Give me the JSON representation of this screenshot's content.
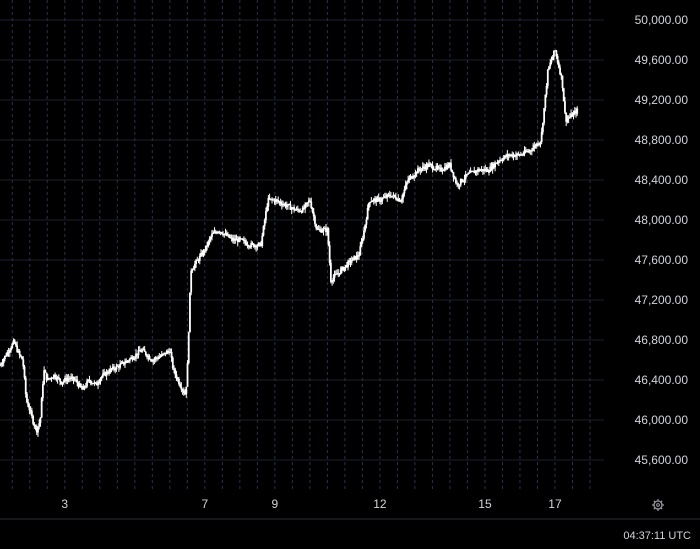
{
  "chart_data": {
    "type": "candlestick",
    "title": "",
    "xlabel": "",
    "ylabel": "",
    "x_ticks": [
      "3",
      "7",
      "9",
      "12",
      "15",
      "17"
    ],
    "x_range": [
      1.15,
      18.4
    ],
    "ylim": [
      45300,
      50200
    ],
    "y_ticks": [
      45600,
      46000,
      46400,
      46800,
      47200,
      47600,
      48000,
      48400,
      48800,
      49200,
      49600,
      50000
    ],
    "y_tick_labels": [
      "45,600.00",
      "46,000.00",
      "46,400.00",
      "46,800.00",
      "47,200.00",
      "47,600.00",
      "48,000.00",
      "48,400.00",
      "48,800.00",
      "49,200.00",
      "49,600.00",
      "50,000.00"
    ],
    "grid": true,
    "price_path": [
      [
        1.15,
        46550
      ],
      [
        1.4,
        46700
      ],
      [
        1.55,
        46780
      ],
      [
        1.7,
        46650
      ],
      [
        1.8,
        46600
      ],
      [
        1.9,
        46200
      ],
      [
        2.0,
        46100
      ],
      [
        2.1,
        45980
      ],
      [
        2.2,
        45900
      ],
      [
        2.3,
        46000
      ],
      [
        2.4,
        46500
      ],
      [
        2.5,
        46400
      ],
      [
        2.7,
        46450
      ],
      [
        2.9,
        46380
      ],
      [
        3.1,
        46420
      ],
      [
        3.3,
        46400
      ],
      [
        3.5,
        46300
      ],
      [
        3.7,
        46400
      ],
      [
        3.9,
        46350
      ],
      [
        4.0,
        46420
      ],
      [
        4.3,
        46500
      ],
      [
        4.6,
        46550
      ],
      [
        4.9,
        46620
      ],
      [
        5.2,
        46700
      ],
      [
        5.5,
        46600
      ],
      [
        5.8,
        46650
      ],
      [
        6.0,
        46700
      ],
      [
        6.1,
        46500
      ],
      [
        6.3,
        46350
      ],
      [
        6.45,
        46250
      ],
      [
        6.5,
        46500
      ],
      [
        6.6,
        47500
      ],
      [
        6.8,
        47600
      ],
      [
        7.0,
        47700
      ],
      [
        7.2,
        47850
      ],
      [
        7.4,
        47900
      ],
      [
        7.6,
        47850
      ],
      [
        7.8,
        47800
      ],
      [
        8.0,
        47800
      ],
      [
        8.3,
        47750
      ],
      [
        8.6,
        47750
      ],
      [
        8.8,
        48200
      ],
      [
        9.0,
        48200
      ],
      [
        9.3,
        48150
      ],
      [
        9.6,
        48100
      ],
      [
        9.8,
        48100
      ],
      [
        10.0,
        48200
      ],
      [
        10.2,
        47900
      ],
      [
        10.5,
        47900
      ],
      [
        10.6,
        47400
      ],
      [
        10.9,
        47500
      ],
      [
        11.2,
        47600
      ],
      [
        11.4,
        47650
      ],
      [
        11.55,
        47900
      ],
      [
        11.7,
        48200
      ],
      [
        12.0,
        48200
      ],
      [
        12.3,
        48250
      ],
      [
        12.6,
        48200
      ],
      [
        12.8,
        48400
      ],
      [
        13.1,
        48500
      ],
      [
        13.4,
        48550
      ],
      [
        13.7,
        48500
      ],
      [
        14.0,
        48550
      ],
      [
        14.2,
        48350
      ],
      [
        14.5,
        48450
      ],
      [
        14.8,
        48500
      ],
      [
        15.1,
        48500
      ],
      [
        15.4,
        48600
      ],
      [
        15.7,
        48650
      ],
      [
        16.0,
        48650
      ],
      [
        16.3,
        48700
      ],
      [
        16.6,
        48800
      ],
      [
        16.8,
        49500
      ],
      [
        17.0,
        49700
      ],
      [
        17.2,
        49400
      ],
      [
        17.3,
        49000
      ],
      [
        17.5,
        49050
      ],
      [
        17.65,
        49100
      ]
    ]
  },
  "bottom_bar": {
    "time_readout": "04:37:11 UTC"
  },
  "colors": {
    "background": "#000000",
    "grid": "#1c1f2a",
    "vertical_grid": "#22344f",
    "candle": "#ffffff",
    "text": "#d1d4dc",
    "separator": "#2a2e39"
  },
  "icons": {
    "settings": "settings-gear-icon"
  }
}
